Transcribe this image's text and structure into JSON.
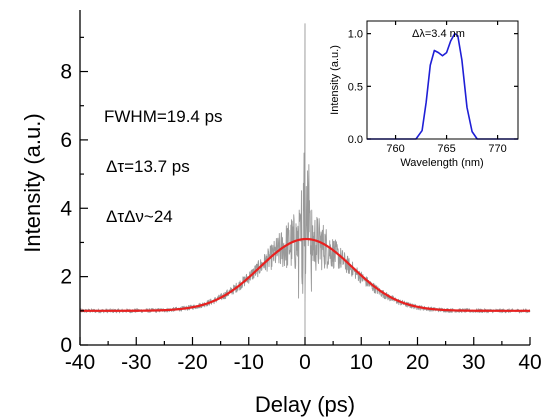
{
  "chart_data": [
    {
      "type": "line",
      "title": "",
      "xlabel": "Delay (ps)",
      "ylabel": "Intensity (a.u.)",
      "xlim": [
        -40,
        40
      ],
      "ylim": [
        0,
        9.8
      ],
      "xticks": [
        -40,
        -30,
        -20,
        -10,
        0,
        10,
        20,
        30,
        40
      ],
      "yticks": [
        0,
        2,
        4,
        6,
        8
      ],
      "grid": false,
      "annotations": [
        "FWHM=19.4 ps",
        "Δτ=13.7 ps",
        "ΔτΔν~24"
      ],
      "series": [
        {
          "kind": "measured autocorrelation trace",
          "color": "#999999",
          "background": 1.0,
          "peak": 9.4,
          "peak_x": 0,
          "fwhm": 19.4,
          "pedestal_peak": 3.05
        },
        {
          "kind": "gaussian fit",
          "color": "#e8201f",
          "baseline": 1.0,
          "peak": 3.1,
          "center": 0.2,
          "fwhm": 19.4
        }
      ]
    },
    {
      "type": "line",
      "title": "",
      "xlabel": "Wavelength (nm)",
      "ylabel": "Intensity (a.u.)",
      "xlim": [
        757.2,
        772
      ],
      "ylim": [
        0,
        1.12
      ],
      "xticks": [
        760,
        765,
        770
      ],
      "yticks": [
        0.0,
        0.5,
        1.0
      ],
      "yticklabels": [
        "0.0",
        "0.5",
        "1.0"
      ],
      "annotations": [
        "Δλ=3.4 nm"
      ],
      "series": [
        {
          "kind": "spectrum",
          "color": "#1f1fd6",
          "x": [
            757.2,
            760.0,
            762.0,
            762.6,
            763.0,
            763.4,
            763.8,
            764.2,
            764.6,
            765.0,
            765.4,
            765.8,
            766.1,
            766.5,
            767.0,
            767.5,
            768.0,
            770.0,
            772.0
          ],
          "y": [
            0.0,
            0.0,
            0.0,
            0.08,
            0.35,
            0.7,
            0.84,
            0.82,
            0.79,
            0.82,
            0.93,
            1.0,
            0.98,
            0.75,
            0.3,
            0.07,
            0.0,
            0.0,
            0.0
          ]
        }
      ]
    }
  ]
}
